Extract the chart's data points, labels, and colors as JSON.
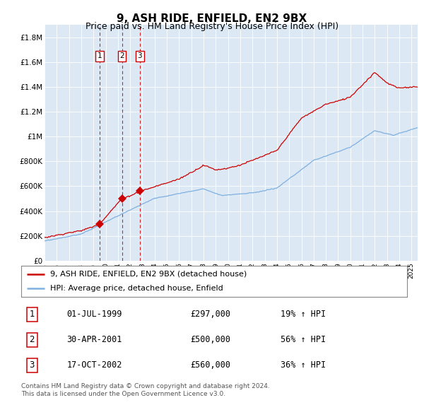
{
  "title": "9, ASH RIDE, ENFIELD, EN2 9BX",
  "subtitle": "Price paid vs. HM Land Registry's House Price Index (HPI)",
  "title_fontsize": 11,
  "subtitle_fontsize": 9,
  "bg_color": "#dce9f5",
  "fig_bg_color": "#ffffff",
  "hpi_color": "#7fb0e0",
  "price_color": "#cc0000",
  "dashed_color": "#cc0000",
  "ylim": [
    0,
    1900000
  ],
  "yticks": [
    0,
    200000,
    400000,
    600000,
    800000,
    1000000,
    1200000,
    1400000,
    1600000,
    1800000
  ],
  "ytick_labels": [
    "£0",
    "£200K",
    "£400K",
    "£600K",
    "£800K",
    "£1M",
    "£1.2M",
    "£1.4M",
    "£1.6M",
    "£1.8M"
  ],
  "xstart": 1995.0,
  "xend": 2025.5,
  "sale_dates": [
    1999.5,
    2001.33,
    2002.79
  ],
  "sale_prices": [
    297000,
    500000,
    560000
  ],
  "sale_labels": [
    "1",
    "2",
    "3"
  ],
  "sale_date_strings": [
    "01-JUL-1999",
    "30-APR-2001",
    "17-OCT-2002"
  ],
  "sale_price_strings": [
    "£297,000",
    "£500,000",
    "£560,000"
  ],
  "sale_hpi_strings": [
    "19% ↑ HPI",
    "56% ↑ HPI",
    "36% ↑ HPI"
  ],
  "legend_label_red": "9, ASH RIDE, ENFIELD, EN2 9BX (detached house)",
  "legend_label_blue": "HPI: Average price, detached house, Enfield",
  "footer_line1": "Contains HM Land Registry data © Crown copyright and database right 2024.",
  "footer_line2": "This data is licensed under the Open Government Licence v3.0."
}
